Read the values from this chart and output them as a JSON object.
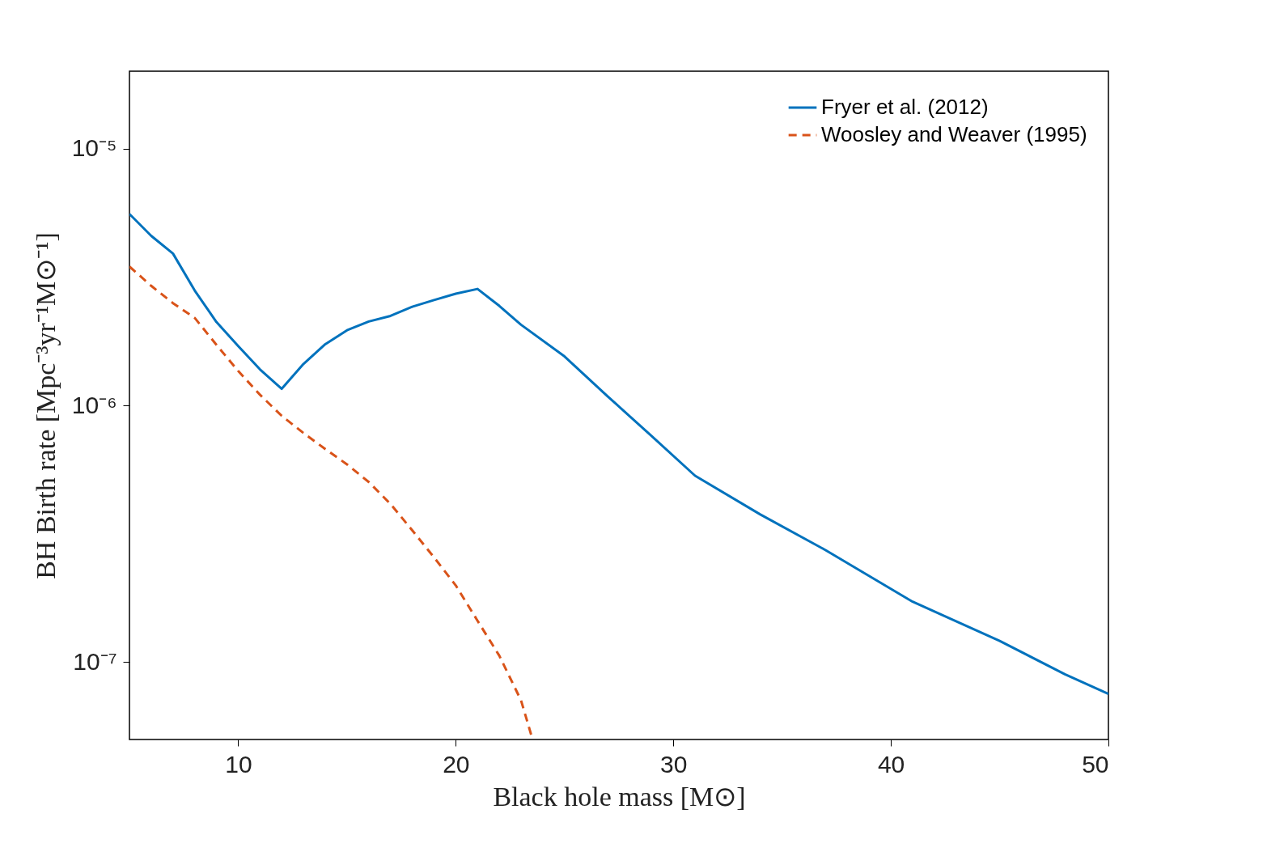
{
  "chart_data": {
    "type": "line",
    "xlabel": "Black hole mass [M⊙]",
    "ylabel": "BH Birth rate [Mpc⁻³yr⁻¹M⊙⁻¹]",
    "xlim": [
      5,
      50
    ],
    "xticks": [
      10,
      20,
      30,
      40,
      50
    ],
    "ylim": [
      5e-08,
      2e-05
    ],
    "yticks": [
      {
        "value": 1e-07,
        "label": "10⁻⁷"
      },
      {
        "value": 1e-06,
        "label": "10⁻⁶"
      },
      {
        "value": 1e-05,
        "label": "10⁻⁵"
      }
    ],
    "log": "y",
    "grid": false,
    "legend": "top right",
    "series": [
      {
        "name": "Fryer et al. (2012)",
        "color": "#0072bd",
        "line_style": "solid",
        "x": [
          5,
          6,
          7,
          8,
          9,
          10,
          11,
          12,
          13,
          14,
          15,
          16,
          17,
          18,
          19,
          20,
          21,
          22,
          23,
          25,
          27,
          29,
          31,
          34,
          37,
          41,
          45,
          48,
          50
        ],
        "values": [
          5.56e-06,
          4.57e-06,
          3.9e-06,
          2.8e-06,
          2.11e-06,
          1.7e-06,
          1.38e-06,
          1.16e-06,
          1.45e-06,
          1.73e-06,
          1.96e-06,
          2.12e-06,
          2.23e-06,
          2.42e-06,
          2.57e-06,
          2.72e-06,
          2.84e-06,
          2.44e-06,
          2.06e-06,
          1.55e-06,
          1.08e-06,
          7.6e-07,
          5.32e-07,
          3.76e-07,
          2.73e-07,
          1.72e-07,
          1.21e-07,
          8.97e-08,
          7.53e-08
        ]
      },
      {
        "name": "Woosley and Weaver (1995)",
        "color": "#d95319",
        "line_style": "dashed",
        "x": [
          5,
          6,
          7,
          8,
          9,
          10,
          11,
          12,
          13,
          14,
          15,
          16,
          17,
          18,
          19,
          20,
          21,
          22,
          23,
          23.5
        ],
        "values": [
          3.47e-06,
          2.92e-06,
          2.5e-06,
          2.19e-06,
          1.72e-06,
          1.36e-06,
          1.1e-06,
          9.1e-07,
          7.8e-07,
          6.76e-07,
          5.89e-07,
          5.03e-07,
          4.13e-07,
          3.26e-07,
          2.56e-07,
          1.99e-07,
          1.45e-07,
          1.06e-07,
          7.1e-08,
          5.1e-08
        ]
      }
    ]
  }
}
